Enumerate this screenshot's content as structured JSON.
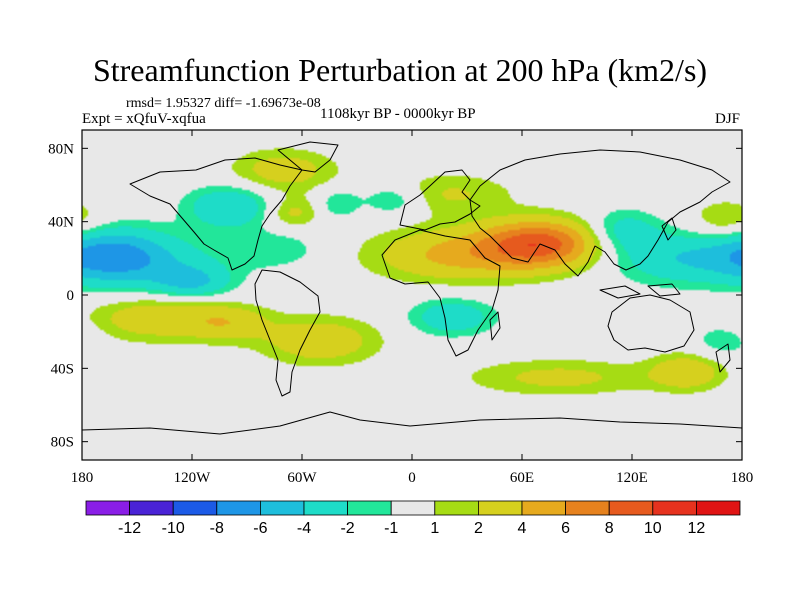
{
  "title": "Streamfunction Perturbation at 200 hPa (km2/s)",
  "subtitle": {
    "stats": "rmsd= 1.95327 diff= -1.69673e-08",
    "experiment": "Expt = xQfuV-xqfua",
    "period": "1108kyr BP - 0000kyr BP",
    "season": "DJF"
  },
  "chart_data": {
    "type": "heatmap",
    "title": "Streamfunction Perturbation at 200 hPa (km2/s)",
    "xlim": [
      -180,
      180
    ],
    "ylim": [
      -90,
      90
    ],
    "x_ticks": [
      {
        "value": -180,
        "label": "180"
      },
      {
        "value": -120,
        "label": "120W"
      },
      {
        "value": -60,
        "label": "60W"
      },
      {
        "value": 0,
        "label": "0"
      },
      {
        "value": 60,
        "label": "60E"
      },
      {
        "value": 120,
        "label": "120E"
      },
      {
        "value": 180,
        "label": "180"
      }
    ],
    "y_ticks": [
      {
        "value": 80,
        "label": "80N"
      },
      {
        "value": 40,
        "label": "40N"
      },
      {
        "value": 0,
        "label": "0"
      },
      {
        "value": -40,
        "label": "40S"
      },
      {
        "value": -80,
        "label": "80S"
      }
    ],
    "levels": [
      -12,
      -10,
      -8,
      -6,
      -4,
      -2,
      -1,
      1,
      2,
      4,
      6,
      8,
      10,
      12
    ],
    "level_labels": [
      "-12",
      "-10",
      "-8",
      "-6",
      "-4",
      "-2",
      "-1",
      "1",
      "2",
      "4",
      "6",
      "8",
      "10",
      "12"
    ],
    "colors": [
      "#8a1ee6",
      "#4a23d6",
      "#1c5ae6",
      "#1e96e6",
      "#1ebedc",
      "#1edcc8",
      "#22e69a",
      "#e8e8e8",
      "#a6dc14",
      "#d6d01e",
      "#e6aa1e",
      "#e6821e",
      "#e65a1e",
      "#e6321e",
      "#e01414"
    ],
    "field_centers": [
      {
        "lon": -165,
        "lat": 22,
        "amp": -6,
        "sx": 22,
        "sy": 10
      },
      {
        "lon": -140,
        "lat": 15,
        "amp": -2.5,
        "sx": 30,
        "sy": 12
      },
      {
        "lon": -120,
        "lat": 7,
        "amp": -3.5,
        "sx": 14,
        "sy": 6
      },
      {
        "lon": -100,
        "lat": 48,
        "amp": -4,
        "sx": 16,
        "sy": 8
      },
      {
        "lon": -65,
        "lat": 45,
        "amp": 2.5,
        "sx": 10,
        "sy": 6
      },
      {
        "lon": -75,
        "lat": 25,
        "amp": -1.8,
        "sx": 18,
        "sy": 7
      },
      {
        "lon": -70,
        "lat": 68,
        "amp": 3,
        "sx": 20,
        "sy": 8
      },
      {
        "lon": -40,
        "lat": 50,
        "amp": -2,
        "sx": 8,
        "sy": 6
      },
      {
        "lon": -10,
        "lat": 52,
        "amp": -2.5,
        "sx": 12,
        "sy": 6
      },
      {
        "lon": 20,
        "lat": 55,
        "amp": 2.2,
        "sx": 25,
        "sy": 8
      },
      {
        "lon": -140,
        "lat": -12,
        "amp": 3.5,
        "sx": 25,
        "sy": 9
      },
      {
        "lon": -100,
        "lat": -15,
        "amp": 3,
        "sx": 16,
        "sy": 7
      },
      {
        "lon": -50,
        "lat": -25,
        "amp": 3.5,
        "sx": 22,
        "sy": 9
      },
      {
        "lon": 22,
        "lat": -12,
        "amp": -3.5,
        "sx": 16,
        "sy": 7
      },
      {
        "lon": 25,
        "lat": 22,
        "amp": 4.5,
        "sx": 32,
        "sy": 10
      },
      {
        "lon": 70,
        "lat": 28,
        "amp": 8.5,
        "sx": 22,
        "sy": 9
      },
      {
        "lon": 115,
        "lat": 35,
        "amp": -3,
        "sx": 14,
        "sy": 8
      },
      {
        "lon": 145,
        "lat": 20,
        "amp": -3.5,
        "sx": 25,
        "sy": 10
      },
      {
        "lon": 172,
        "lat": 40,
        "amp": 2.5,
        "sx": 14,
        "sy": 8
      },
      {
        "lon": 80,
        "lat": -45,
        "amp": 2.5,
        "sx": 35,
        "sy": 7
      },
      {
        "lon": 150,
        "lat": -42,
        "amp": 3.5,
        "sx": 14,
        "sy": 7
      },
      {
        "lon": 170,
        "lat": -25,
        "amp": -1.8,
        "sx": 12,
        "sy": 7
      }
    ]
  }
}
